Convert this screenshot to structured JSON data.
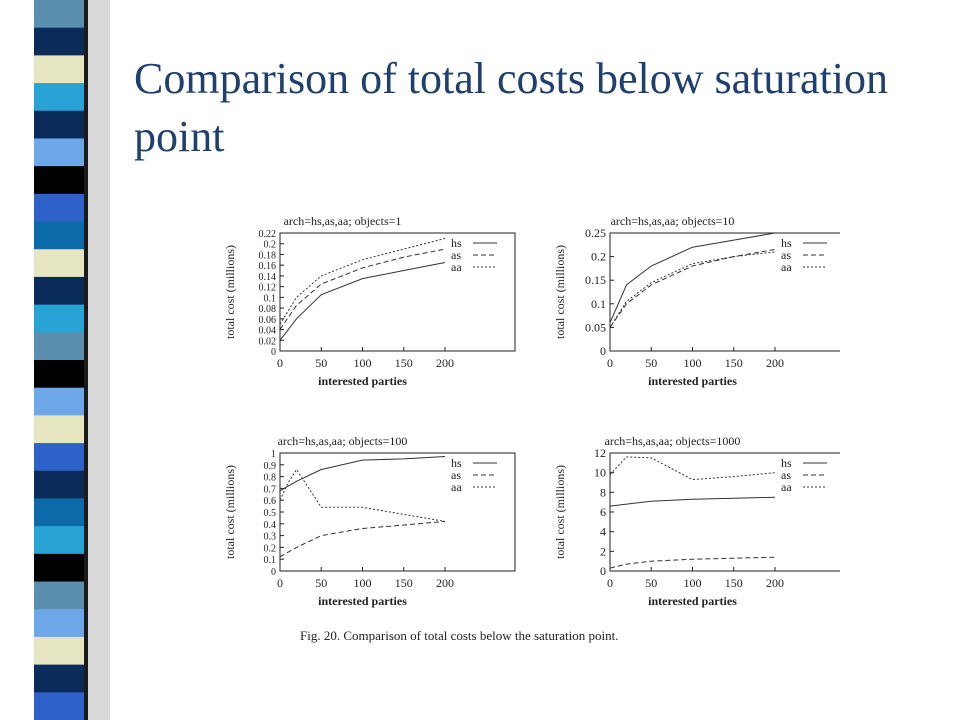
{
  "slide": {
    "title": "Comparison of total costs below saturation point"
  },
  "decor": {
    "stripe_colors": [
      "#5b8fb0",
      "#0a2a5a",
      "#e6e6c2",
      "#000000",
      "#27a3d6",
      "#6fa8e8",
      "#2f62c9",
      "#0d6aa8"
    ]
  },
  "figure": {
    "caption": "Fig. 20.    Comparison of total costs below the saturation point."
  },
  "chart_data": [
    {
      "type": "line",
      "title": "arch=hs,as,aa; objects=1",
      "xlabel": "interested parties",
      "ylabel": "total cost (millions)",
      "xlim": [
        0,
        200
      ],
      "ylim": [
        0,
        0.22
      ],
      "xticks": [
        "0",
        "50",
        "100",
        "150",
        "200"
      ],
      "xtick_values": [
        0,
        50,
        100,
        150,
        200
      ],
      "yticks": [
        "0",
        "0.02",
        "0.04",
        "0.06",
        "0.08",
        "0.1",
        "0.12",
        "0.14",
        "0.16",
        "0.18",
        "0.2",
        "0.22"
      ],
      "ytick_values": [
        0,
        0.02,
        0.04,
        0.06,
        0.08,
        0.1,
        0.12,
        0.14,
        0.16,
        0.18,
        0.2,
        0.22
      ],
      "legend_position": "right",
      "series": [
        {
          "name": "hs",
          "style": "solid",
          "x": [
            0,
            20,
            50,
            100,
            150,
            200
          ],
          "y": [
            0.02,
            0.06,
            0.105,
            0.135,
            0.15,
            0.165
          ]
        },
        {
          "name": "as",
          "style": "dashed",
          "x": [
            0,
            20,
            50,
            100,
            150,
            200
          ],
          "y": [
            0.04,
            0.085,
            0.125,
            0.155,
            0.175,
            0.19
          ]
        },
        {
          "name": "aa",
          "style": "dotted",
          "x": [
            0,
            20,
            50,
            100,
            150,
            200
          ],
          "y": [
            0.05,
            0.1,
            0.14,
            0.17,
            0.19,
            0.21
          ]
        }
      ]
    },
    {
      "type": "line",
      "title": "arch=hs,as,aa; objects=10",
      "xlabel": "interested parties",
      "ylabel": "total cost (millions)",
      "xlim": [
        0,
        200
      ],
      "ylim": [
        0,
        0.25
      ],
      "xticks": [
        "0",
        "50",
        "100",
        "150",
        "200"
      ],
      "xtick_values": [
        0,
        50,
        100,
        150,
        200
      ],
      "yticks": [
        "0",
        "0.05",
        "0.1",
        "0.15",
        "0.2",
        "0.25"
      ],
      "ytick_values": [
        0,
        0.05,
        0.1,
        0.15,
        0.2,
        0.25
      ],
      "legend_position": "right",
      "series": [
        {
          "name": "hs",
          "style": "solid",
          "x": [
            0,
            20,
            50,
            100,
            150,
            200
          ],
          "y": [
            0.06,
            0.14,
            0.18,
            0.22,
            0.235,
            0.25
          ]
        },
        {
          "name": "as",
          "style": "dashed",
          "x": [
            0,
            20,
            50,
            100,
            150,
            200
          ],
          "y": [
            0.05,
            0.1,
            0.14,
            0.18,
            0.2,
            0.215
          ]
        },
        {
          "name": "aa",
          "style": "dotted",
          "x": [
            0,
            20,
            50,
            100,
            150,
            200
          ],
          "y": [
            0.05,
            0.105,
            0.145,
            0.185,
            0.2,
            0.21
          ]
        }
      ]
    },
    {
      "type": "line",
      "title": "arch=hs,as,aa; objects=100",
      "xlabel": "interested parties",
      "ylabel": "total cost (millions)",
      "xlim": [
        0,
        200
      ],
      "ylim": [
        0,
        1
      ],
      "xticks": [
        "0",
        "50",
        "100",
        "150",
        "200"
      ],
      "xtick_values": [
        0,
        50,
        100,
        150,
        200
      ],
      "yticks": [
        "0",
        "0.1",
        "0.2",
        "0.3",
        "0.4",
        "0.5",
        "0.6",
        "0.7",
        "0.8",
        "0.9",
        "1"
      ],
      "ytick_values": [
        0,
        0.1,
        0.2,
        0.3,
        0.4,
        0.5,
        0.6,
        0.7,
        0.8,
        0.9,
        1
      ],
      "legend_position": "right",
      "series": [
        {
          "name": "hs",
          "style": "solid",
          "x": [
            0,
            20,
            50,
            100,
            150,
            200
          ],
          "y": [
            0.68,
            0.76,
            0.86,
            0.94,
            0.95,
            0.97
          ]
        },
        {
          "name": "as",
          "style": "dashed",
          "x": [
            0,
            20,
            50,
            100,
            150,
            200
          ],
          "y": [
            0.12,
            0.2,
            0.3,
            0.36,
            0.39,
            0.42
          ]
        },
        {
          "name": "aa",
          "style": "dotted",
          "x": [
            0,
            10,
            20,
            50,
            100,
            150,
            200
          ],
          "y": [
            0.6,
            0.75,
            0.86,
            0.54,
            0.54,
            0.48,
            0.42
          ]
        }
      ]
    },
    {
      "type": "line",
      "title": "arch=hs,as,aa; objects=1000",
      "xlabel": "interested parties",
      "ylabel": "total cost (millions)",
      "xlim": [
        0,
        200
      ],
      "ylim": [
        0,
        12
      ],
      "xticks": [
        "0",
        "50",
        "100",
        "150",
        "200"
      ],
      "xtick_values": [
        0,
        50,
        100,
        150,
        200
      ],
      "yticks": [
        "0",
        "2",
        "4",
        "6",
        "8",
        "10",
        "12"
      ],
      "ytick_values": [
        0,
        2,
        4,
        6,
        8,
        10,
        12
      ],
      "legend_position": "right",
      "series": [
        {
          "name": "hs",
          "style": "solid",
          "x": [
            0,
            50,
            100,
            150,
            200
          ],
          "y": [
            6.6,
            7.1,
            7.3,
            7.4,
            7.5
          ]
        },
        {
          "name": "as",
          "style": "dashed",
          "x": [
            0,
            20,
            50,
            100,
            150,
            200
          ],
          "y": [
            0.3,
            0.7,
            1.0,
            1.2,
            1.3,
            1.4
          ]
        },
        {
          "name": "aa",
          "style": "dotted",
          "x": [
            0,
            20,
            50,
            100,
            150,
            200
          ],
          "y": [
            9.8,
            11.6,
            11.5,
            9.3,
            9.6,
            10.0
          ]
        }
      ]
    }
  ]
}
